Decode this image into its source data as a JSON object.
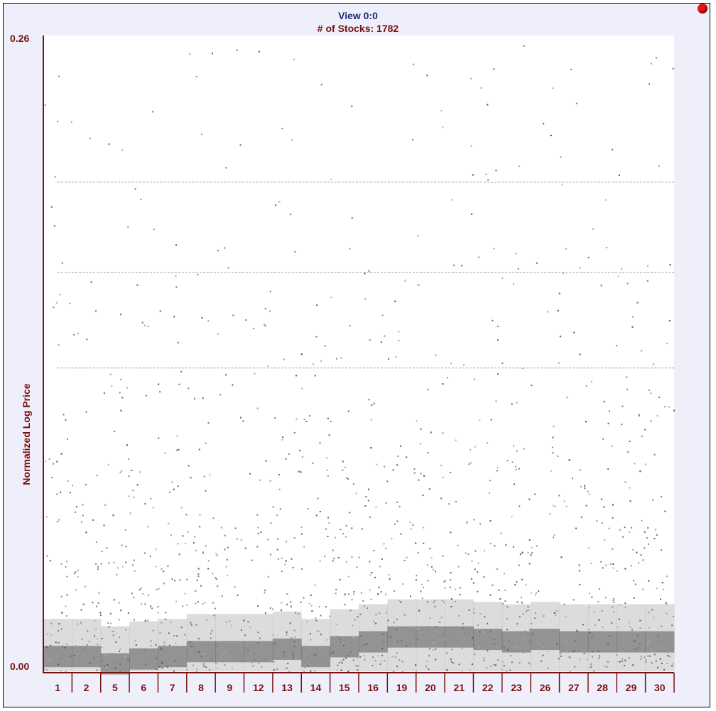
{
  "title": "View 0:0",
  "subtitle": "# of Stocks: 1782",
  "colors": {
    "axis": "#7a1010",
    "title": "#1c2a7a",
    "subtitle": "#7a1010",
    "density": "#4a4a4a",
    "knob": "#e01515"
  },
  "chart_data": {
    "type": "heatmap",
    "title": "View 0:0",
    "subtitle": "# of Stocks: 1782",
    "ylabel": "Normalized Log Price",
    "xlabel": "",
    "ylim": [
      0.0,
      0.26
    ],
    "y_ticks": [
      "0.26",
      "0.00"
    ],
    "categories": [
      "1",
      "2",
      "5",
      "6",
      "7",
      "8",
      "9",
      "12",
      "13",
      "14",
      "15",
      "16",
      "19",
      "20",
      "21",
      "22",
      "23",
      "26",
      "27",
      "28",
      "29",
      "30"
    ],
    "stock_count": 1782,
    "density_profile": {
      "y": [
        0.0,
        0.01,
        0.02,
        0.03,
        0.04,
        0.05,
        0.06,
        0.08,
        0.1,
        0.12,
        0.14,
        0.16,
        0.18,
        0.2,
        0.22,
        0.24,
        0.26
      ],
      "relative_density": [
        1.0,
        0.85,
        0.7,
        0.55,
        0.45,
        0.35,
        0.28,
        0.2,
        0.14,
        0.1,
        0.07,
        0.05,
        0.04,
        0.04,
        0.03,
        0.03,
        0.03
      ]
    },
    "dense_band_center": [
      0.004,
      0.004,
      0.001,
      0.003,
      0.004,
      0.006,
      0.006,
      0.006,
      0.007,
      0.004,
      0.008,
      0.01,
      0.012,
      0.012,
      0.012,
      0.011,
      0.01,
      0.011,
      0.01,
      0.01,
      0.01,
      0.01
    ],
    "horizontal_lines_y": [
      0.2,
      0.163,
      0.124
    ],
    "grid": false
  }
}
